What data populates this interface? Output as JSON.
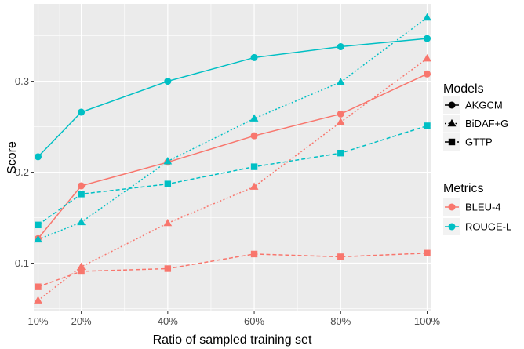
{
  "chart_data": {
    "type": "line",
    "xlabel": "Ratio of sampled training set",
    "ylabel": "Score",
    "x": [
      10,
      20,
      40,
      60,
      80,
      100
    ],
    "x_tick_labels": [
      "10%",
      "20%",
      "40%",
      "60%",
      "80%",
      "100%"
    ],
    "xlim": [
      9,
      101
    ],
    "ylim": [
      0.047,
      0.385
    ],
    "y_ticks": [
      0.1,
      0.2,
      0.3
    ],
    "y_tick_labels": [
      "0.1",
      "0.2",
      "0.3"
    ],
    "grid": true,
    "colors": {
      "BLEU-4": "#F8766D",
      "ROUGE-L": "#00BFC4",
      "panel": "#EBEBEB",
      "grid": "#FFFFFF"
    },
    "series": [
      {
        "name": "AKGCM BLEU-4",
        "model": "AKGCM",
        "metric": "BLEU-4",
        "values": [
          0.127,
          0.185,
          0.211,
          0.24,
          0.264,
          0.308
        ]
      },
      {
        "name": "AKGCM ROUGE-L",
        "model": "AKGCM",
        "metric": "ROUGE-L",
        "values": [
          0.217,
          0.266,
          0.3,
          0.326,
          0.338,
          0.347
        ]
      },
      {
        "name": "BiDAF+G BLEU-4",
        "model": "BiDAF+G",
        "metric": "BLEU-4",
        "values": [
          0.059,
          0.096,
          0.144,
          0.184,
          0.255,
          0.325
        ]
      },
      {
        "name": "BiDAF+G ROUGE-L",
        "model": "BiDAF+G",
        "metric": "ROUGE-L",
        "values": [
          0.126,
          0.145,
          0.212,
          0.259,
          0.299,
          0.37
        ]
      },
      {
        "name": "GTTP BLEU-4",
        "model": "GTTP",
        "metric": "BLEU-4",
        "values": [
          0.074,
          0.091,
          0.094,
          0.11,
          0.107,
          0.111
        ]
      },
      {
        "name": "GTTP ROUGE-L",
        "model": "GTTP",
        "metric": "ROUGE-L",
        "values": [
          0.142,
          0.176,
          0.187,
          0.206,
          0.221,
          0.251
        ]
      }
    ],
    "models": [
      {
        "name": "AKGCM",
        "linestyle": "solid",
        "marker": "circle"
      },
      {
        "name": "BiDAF+G",
        "linestyle": "dotted",
        "marker": "triangle"
      },
      {
        "name": "GTTP",
        "linestyle": "dashed",
        "marker": "square"
      }
    ],
    "metrics": [
      "BLEU-4",
      "ROUGE-L"
    ],
    "legend": {
      "placement": "right",
      "models_title": "Models",
      "metrics_title": "Metrics"
    }
  }
}
